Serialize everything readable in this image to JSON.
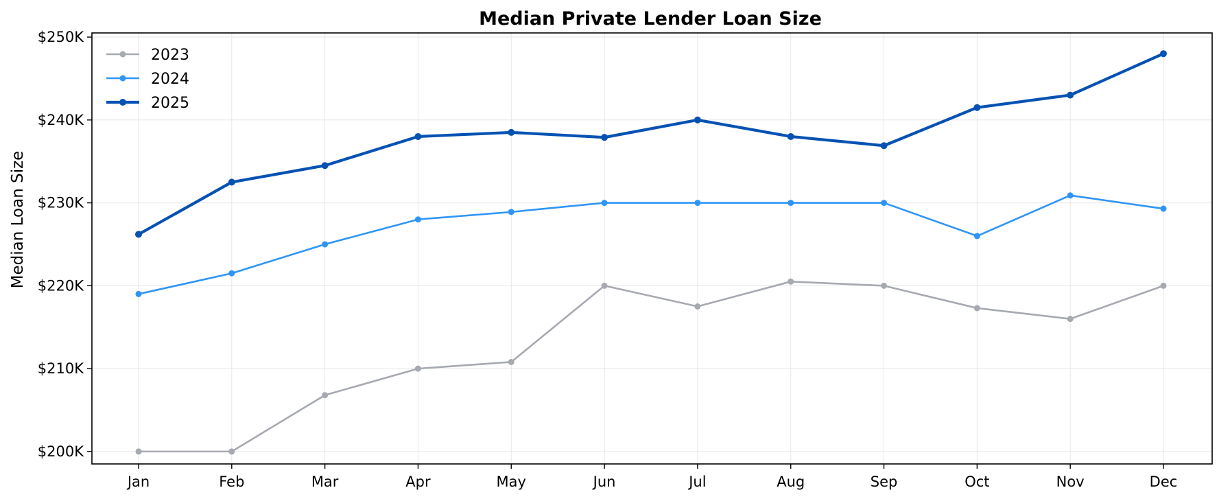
{
  "chart_data": {
    "type": "line",
    "title": "Median Private Lender Loan Size",
    "xlabel": "",
    "ylabel": "Median Loan Size",
    "categories": [
      "Jan",
      "Feb",
      "Mar",
      "Apr",
      "May",
      "Jun",
      "Jul",
      "Aug",
      "Sep",
      "Oct",
      "Nov",
      "Dec"
    ],
    "ylim": [
      198500,
      250500
    ],
    "y_ticks": [
      200000,
      210000,
      220000,
      230000,
      240000,
      250000
    ],
    "y_tick_labels": [
      "$200K",
      "$210K",
      "$220K",
      "$230K",
      "$240K",
      "$250K"
    ],
    "grid": true,
    "legend_position": "top-left",
    "series": [
      {
        "name": "2023",
        "color": "#a6a9b0",
        "values": [
          200000,
          200000,
          206800,
          210000,
          210800,
          220000,
          217500,
          220500,
          220000,
          217300,
          216000,
          220000
        ]
      },
      {
        "name": "2024",
        "color": "#2f95f5",
        "values": [
          219000,
          221500,
          225000,
          228000,
          228900,
          230000,
          230000,
          230000,
          230000,
          226000,
          230900,
          229300
        ]
      },
      {
        "name": "2025",
        "color": "#0652b3",
        "values": [
          226200,
          232500,
          234500,
          238000,
          238500,
          237900,
          240000,
          238000,
          236900,
          241500,
          243000,
          248000
        ]
      }
    ]
  }
}
